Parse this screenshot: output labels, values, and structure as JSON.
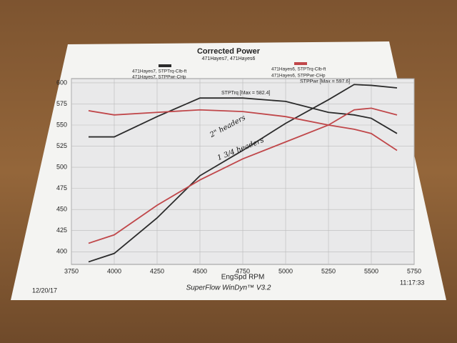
{
  "chart_data": {
    "type": "line",
    "title": "Corrected Power",
    "subtitle": "471Hayes7, 471Hayes6",
    "x_label": "EngSpd RPM",
    "footer": "SuperFlow WinDyn™ V3.2",
    "date": "12/20/17",
    "time": "11:17:33",
    "annotations": [
      "STPTrq [Max = 582.4]",
      "STPPwr [Max = 597.6]",
      "2\" headers",
      "1 3/4 headers"
    ],
    "x": [
      3850,
      4000,
      4250,
      4500,
      4750,
      5000,
      5250,
      5400,
      5500,
      5650
    ],
    "series": [
      {
        "name": "471Hayes7, STPTrq-Clb-ft",
        "color": "#2b2b2b",
        "values": [
          536,
          536,
          560,
          582,
          582,
          578,
          565,
          562,
          558,
          540
        ]
      },
      {
        "name": "471Hayes7, STPPwr-CHp",
        "color": "#2b2b2b",
        "values": [
          388,
          398,
          440,
          490,
          520,
          552,
          580,
          598,
          597,
          594
        ]
      },
      {
        "name": "471Hayes6, STPTrq-Clb-ft",
        "color": "#c0474a",
        "values": [
          567,
          562,
          565,
          568,
          566,
          560,
          550,
          545,
          540,
          520
        ]
      },
      {
        "name": "471Hayes6, STPPwr-CHp",
        "color": "#c0474a",
        "values": [
          410,
          420,
          455,
          485,
          510,
          530,
          550,
          568,
          570,
          562
        ]
      }
    ],
    "xlim": [
      3750,
      5750
    ],
    "xticks": [
      3750,
      4000,
      4250,
      4500,
      4750,
      5000,
      5250,
      5500,
      5750
    ],
    "ylim": [
      385,
      605
    ],
    "yticks": [
      400,
      425,
      450,
      475,
      500,
      525,
      550,
      575,
      600
    ],
    "grid": true
  }
}
